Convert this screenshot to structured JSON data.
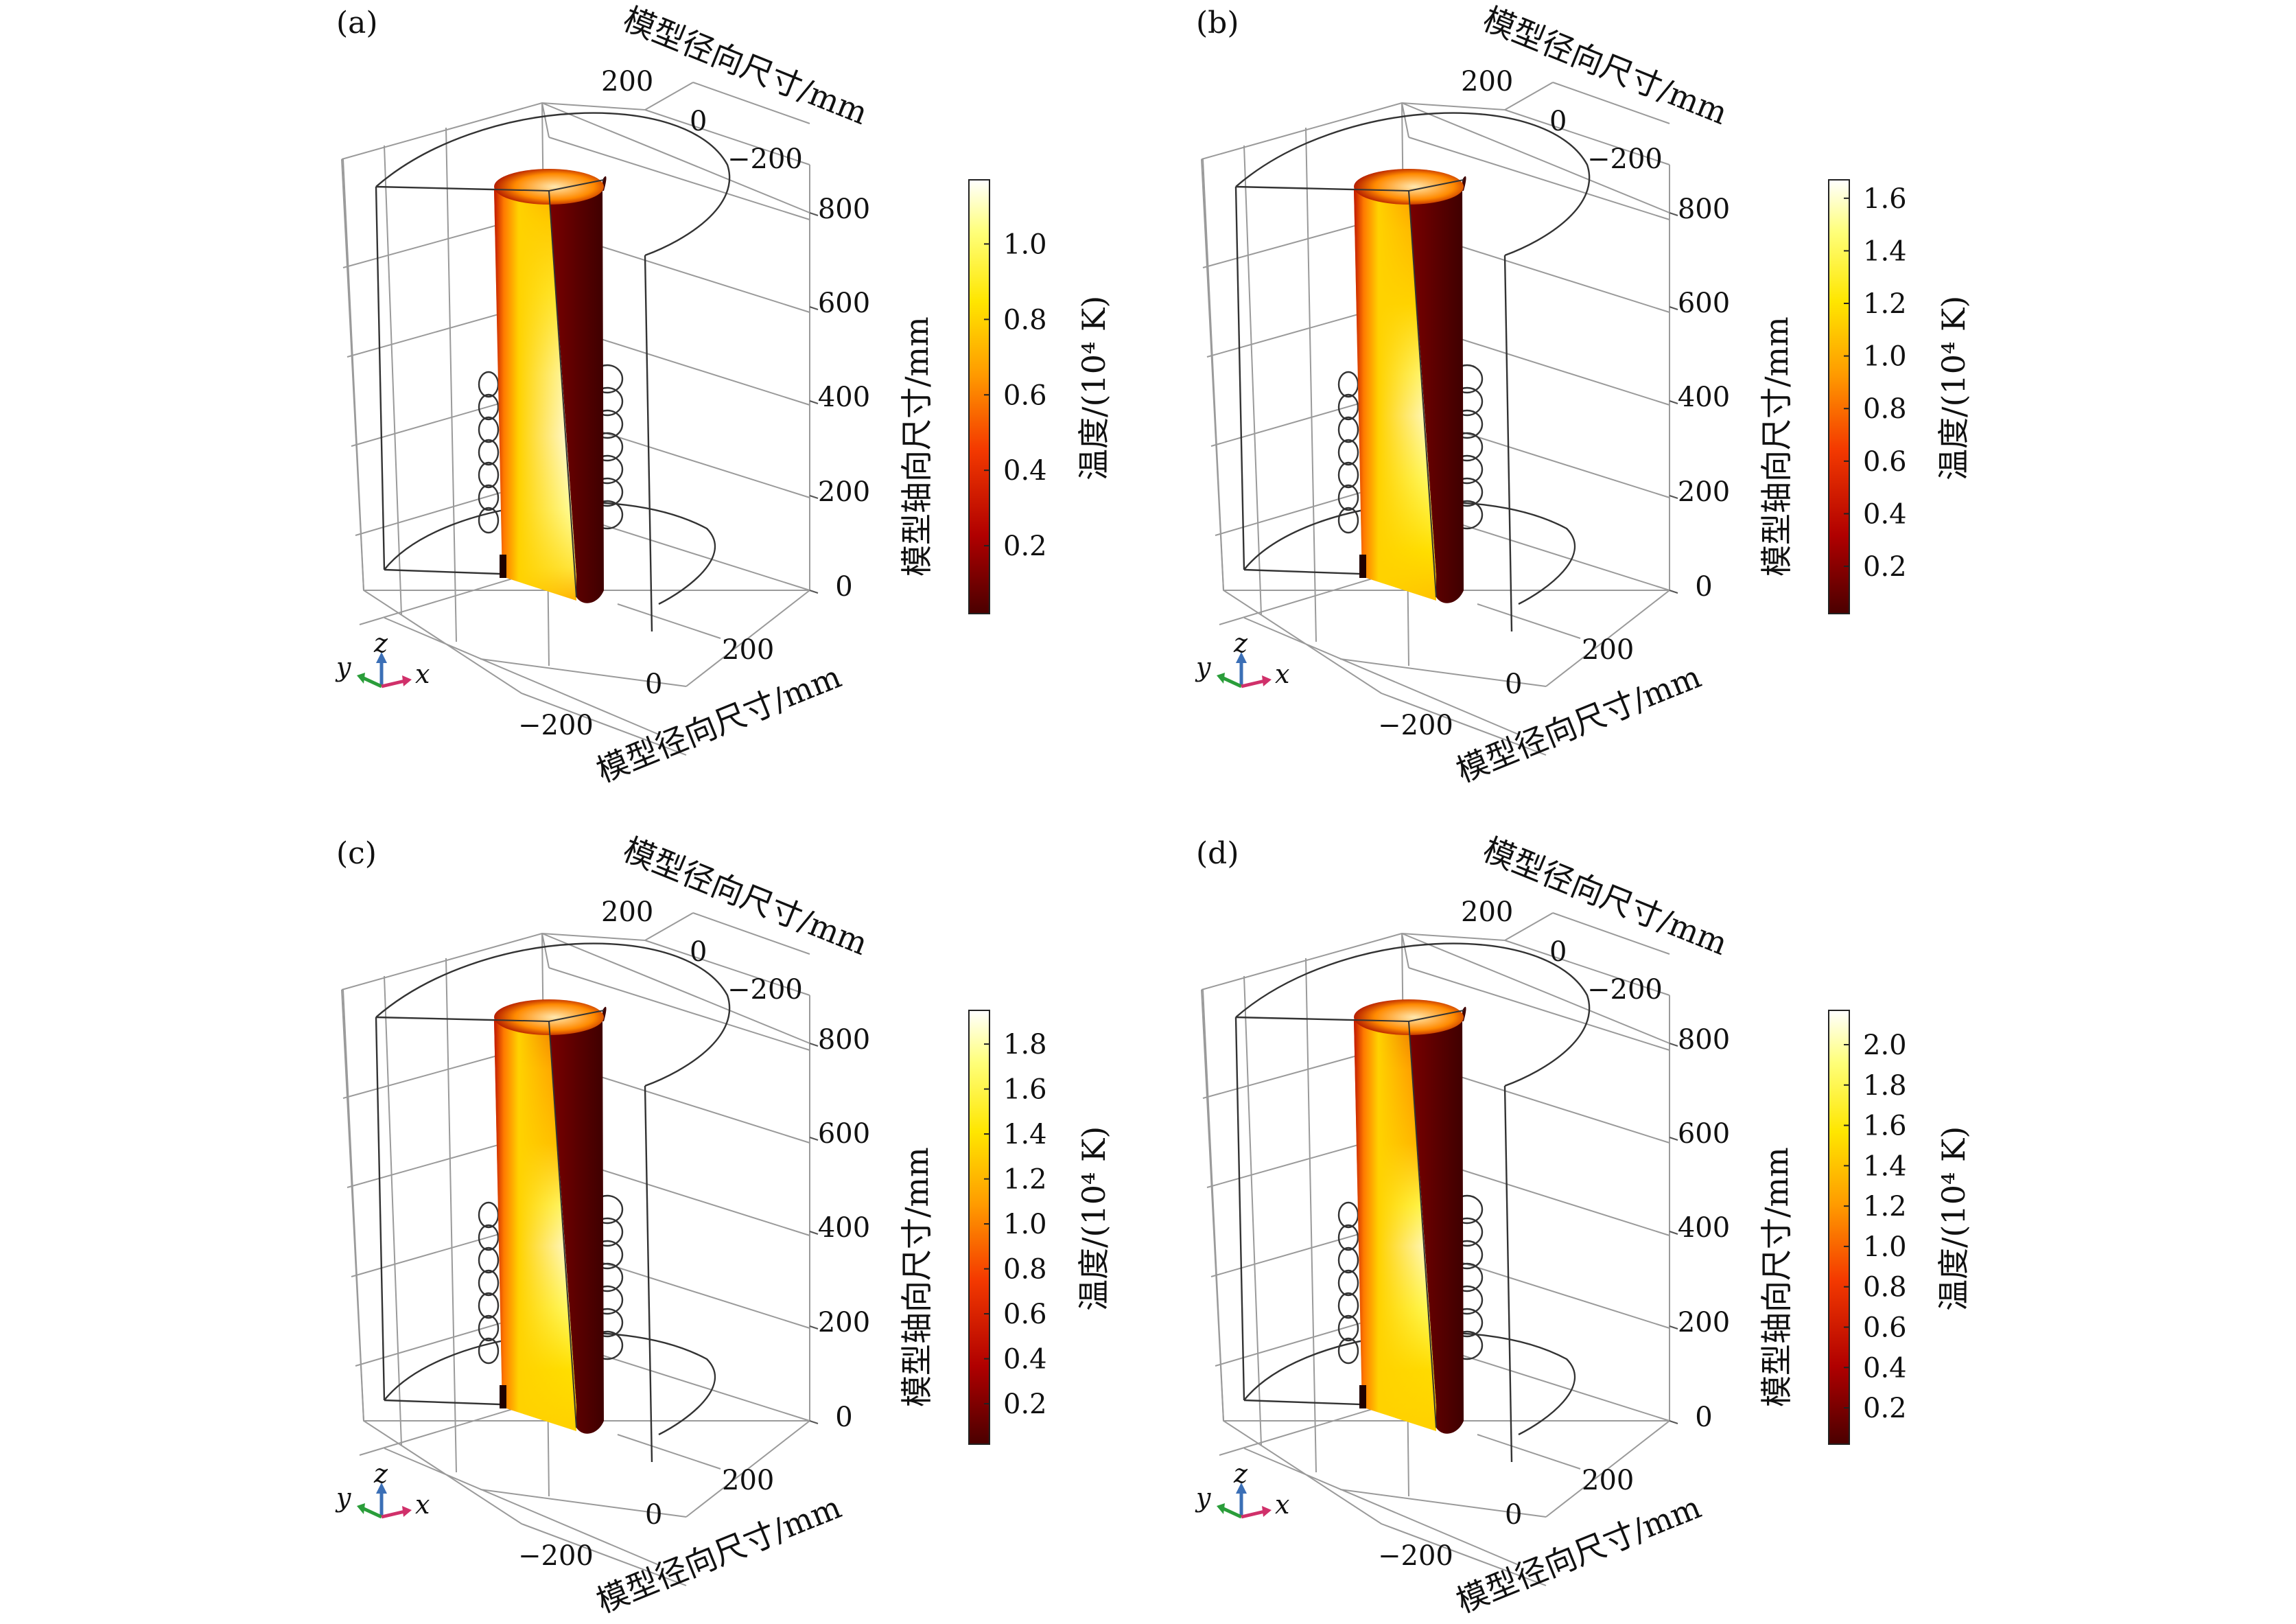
{
  "chart_data": [
    {
      "panel": "(a)",
      "type": "3d-contour-plot",
      "x_axis": {
        "label": "模型径向尺寸/mm",
        "ticks": [
          "200",
          "0",
          "−200"
        ]
      },
      "y_axis": {
        "label": "模型径向尺寸/mm",
        "ticks": [
          "200",
          "0",
          "−200"
        ]
      },
      "z_axis": {
        "label": "模型轴向尺寸/mm",
        "ticks": [
          "800",
          "600",
          "400",
          "200",
          "0"
        ]
      },
      "colorbar": {
        "label": "温度/(10⁴ K)",
        "ticks": [
          "1.0",
          "0.8",
          "0.6",
          "0.4",
          "0.2"
        ],
        "range": [
          0.02,
          1.17
        ]
      },
      "triad": {
        "y": "y",
        "z": "z",
        "x": "x"
      }
    },
    {
      "panel": "(b)",
      "type": "3d-contour-plot",
      "x_axis": {
        "label": "模型径向尺寸/mm",
        "ticks": [
          "200",
          "0",
          "−200"
        ]
      },
      "y_axis": {
        "label": "模型径向尺寸/mm",
        "ticks": [
          "200",
          "0",
          "−200"
        ]
      },
      "z_axis": {
        "label": "模型轴向尺寸/mm",
        "ticks": [
          "800",
          "600",
          "400",
          "200",
          "0"
        ]
      },
      "colorbar": {
        "label": "温度/(10⁴ K)",
        "ticks": [
          "1.6",
          "1.4",
          "1.2",
          "1.0",
          "0.8",
          "0.6",
          "0.4",
          "0.2"
        ],
        "range": [
          0.02,
          1.67
        ]
      },
      "triad": {
        "y": "y",
        "z": "z",
        "x": "x"
      }
    },
    {
      "panel": "(c)",
      "type": "3d-contour-plot",
      "x_axis": {
        "label": "模型径向尺寸/mm",
        "ticks": [
          "200",
          "0",
          "−200"
        ]
      },
      "y_axis": {
        "label": "模型径向尺寸/mm",
        "ticks": [
          "200",
          "0",
          "−200"
        ]
      },
      "z_axis": {
        "label": "模型轴向尺寸/mm",
        "ticks": [
          "800",
          "600",
          "400",
          "200",
          "0"
        ]
      },
      "colorbar": {
        "label": "温度/(10⁴ K)",
        "ticks": [
          "1.8",
          "1.6",
          "1.4",
          "1.2",
          "1.0",
          "0.8",
          "0.6",
          "0.4",
          "0.2"
        ],
        "range": [
          0.02,
          1.95
        ]
      },
      "triad": {
        "y": "y",
        "z": "z",
        "x": "x"
      }
    },
    {
      "panel": "(d)",
      "type": "3d-contour-plot",
      "x_axis": {
        "label": "模型径向尺寸/mm",
        "ticks": [
          "200",
          "0",
          "−200"
        ]
      },
      "y_axis": {
        "label": "模型径向尺寸/mm",
        "ticks": [
          "200",
          "0",
          "−200"
        ]
      },
      "z_axis": {
        "label": "模型轴向尺寸/mm",
        "ticks": [
          "800",
          "600",
          "400",
          "200",
          "0"
        ]
      },
      "colorbar": {
        "label": "温度/(10⁴ K)",
        "ticks": [
          "2.0",
          "1.8",
          "1.6",
          "1.4",
          "1.2",
          "1.0",
          "0.8",
          "0.6",
          "0.4",
          "0.2"
        ],
        "range": [
          0.02,
          2.17
        ]
      },
      "triad": {
        "y": "y",
        "z": "z",
        "x": "x"
      }
    }
  ],
  "colors": {
    "heat_low": "#5c0000",
    "heat_mid": "#ff6a00",
    "heat_high": "#ffffff"
  }
}
